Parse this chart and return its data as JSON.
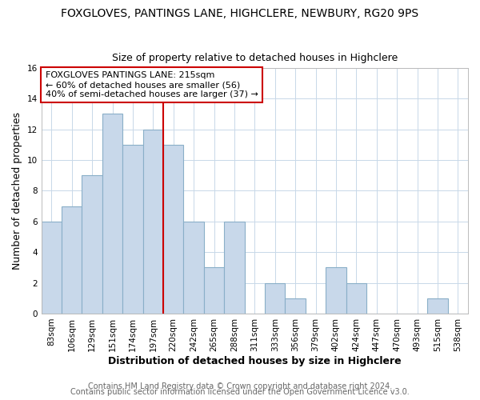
{
  "title": "FOXGLOVES, PANTINGS LANE, HIGHCLERE, NEWBURY, RG20 9PS",
  "subtitle": "Size of property relative to detached houses in Highclere",
  "xlabel": "Distribution of detached houses by size in Highclere",
  "ylabel": "Number of detached properties",
  "footer_line1": "Contains HM Land Registry data © Crown copyright and database right 2024.",
  "footer_line2": "Contains public sector information licensed under the Open Government Licence v3.0.",
  "bin_labels": [
    "83sqm",
    "106sqm",
    "129sqm",
    "151sqm",
    "174sqm",
    "197sqm",
    "220sqm",
    "242sqm",
    "265sqm",
    "288sqm",
    "311sqm",
    "333sqm",
    "356sqm",
    "379sqm",
    "402sqm",
    "424sqm",
    "447sqm",
    "470sqm",
    "493sqm",
    "515sqm",
    "538sqm"
  ],
  "bin_values": [
    6,
    7,
    9,
    13,
    11,
    12,
    11,
    6,
    3,
    6,
    0,
    2,
    1,
    0,
    3,
    2,
    0,
    0,
    0,
    1,
    0
  ],
  "bar_color": "#c8d8ea",
  "bar_edge_color": "#8aafc8",
  "marker_bin_index": 6,
  "marker_color": "#cc0000",
  "annotation_line1": "FOXGLOVES PANTINGS LANE: 215sqm",
  "annotation_line2": "← 60% of detached houses are smaller (56)",
  "annotation_line3": "40% of semi-detached houses are larger (37) →",
  "annotation_box_edge": "#cc0000",
  "ylim": [
    0,
    16
  ],
  "yticks": [
    0,
    2,
    4,
    6,
    8,
    10,
    12,
    14,
    16
  ],
  "background_color": "#ffffff",
  "plot_background": "#ffffff",
  "title_fontsize": 10,
  "subtitle_fontsize": 9,
  "axis_label_fontsize": 9,
  "tick_fontsize": 7.5,
  "annotation_fontsize": 8,
  "footer_fontsize": 7
}
